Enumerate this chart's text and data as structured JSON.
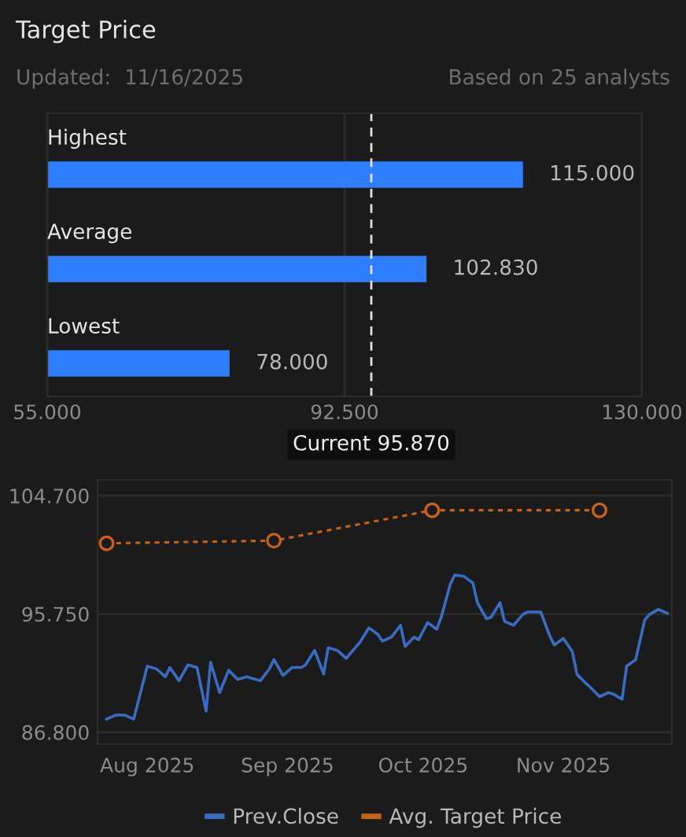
{
  "chart_data": [
    {
      "type": "bar",
      "orientation": "horizontal",
      "title": "Target Price",
      "subtitle": "Updated:  11/16/2025",
      "annotations": [
        "Based on 25 analysts"
      ],
      "categories": [
        "Highest",
        "Average",
        "Lowest"
      ],
      "values": [
        115,
        102.83,
        78
      ],
      "color": "#2f7dff",
      "value_labels": [
        "115.000",
        "102.830",
        "78.000"
      ],
      "xlim": [
        55,
        130
      ],
      "xticks": [
        {
          "value": 55,
          "label": "55.000"
        },
        {
          "value": 92.5,
          "label": "92.500"
        },
        {
          "value": 130,
          "label": "130.000"
        }
      ],
      "ref_lines": [
        {
          "axis": "x",
          "value": 95.87,
          "label": "Current 95.870",
          "color": "#e0e0e0",
          "line_style": "dashed"
        }
      ],
      "grid": "x"
    },
    {
      "type": "line",
      "x": [
        "2025-07-23",
        "2025-07-25",
        "2025-07-27",
        "2025-07-29",
        "2025-08-01",
        "2025-08-03",
        "2025-08-05",
        "2025-08-06",
        "2025-08-08",
        "2025-08-10",
        "2025-08-12",
        "2025-08-14",
        "2025-08-15",
        "2025-08-17",
        "2025-08-19",
        "2025-08-21",
        "2025-08-23",
        "2025-08-24",
        "2025-08-26",
        "2025-08-28",
        "2025-08-29",
        "2025-08-31",
        "2025-09-02",
        "2025-09-04",
        "2025-09-05",
        "2025-09-07",
        "2025-09-09",
        "2025-09-10",
        "2025-09-12",
        "2025-09-14",
        "2025-09-16",
        "2025-09-17",
        "2025-09-19",
        "2025-09-21",
        "2025-09-22",
        "2025-09-24",
        "2025-09-26",
        "2025-09-27",
        "2025-09-29",
        "2025-09-30",
        "2025-10-02",
        "2025-10-04",
        "2025-10-05",
        "2025-10-07",
        "2025-10-08",
        "2025-10-10",
        "2025-10-12",
        "2025-10-13",
        "2025-10-15",
        "2025-10-16",
        "2025-10-18",
        "2025-10-19",
        "2025-10-21",
        "2025-10-23",
        "2025-10-24",
        "2025-10-26",
        "2025-10-27",
        "2025-10-29",
        "2025-10-30",
        "2025-11-01",
        "2025-11-03",
        "2025-11-04",
        "2025-11-06",
        "2025-11-07",
        "2025-11-09",
        "2025-11-11",
        "2025-11-12",
        "2025-11-14",
        "2025-11-15",
        "2025-11-17",
        "2025-11-19",
        "2025-11-20",
        "2025-11-22",
        "2025-11-24"
      ],
      "series": [
        {
          "name": "Prev.Close",
          "color": "#3a6cc4",
          "values": [
            87.8,
            88.1,
            88.1,
            87.8,
            91.8,
            91.6,
            91.0,
            91.7,
            90.7,
            91.9,
            91.7,
            88.4,
            92.1,
            89.8,
            91.5,
            90.8,
            91.0,
            90.9,
            90.7,
            91.6,
            92.3,
            91.1,
            91.7,
            91.7,
            91.9,
            93.0,
            91.2,
            93.2,
            93.0,
            92.4,
            93.2,
            93.6,
            94.7,
            94.2,
            93.7,
            94.0,
            94.9,
            93.3,
            94.0,
            93.8,
            95.1,
            94.6,
            95.5,
            98.0,
            98.7,
            98.6,
            98.1,
            96.6,
            95.4,
            95.5,
            96.6,
            95.2,
            94.9,
            95.7,
            95.9,
            95.9,
            95.9,
            94.1,
            93.4,
            93.9,
            92.9,
            91.2,
            90.5,
            90.2,
            89.5,
            89.8,
            89.7,
            89.3,
            91.8,
            92.3,
            95.3,
            95.7,
            96.1,
            95.8
          ]
        },
        {
          "name": "Avg. Target Price",
          "color": "#c8621a",
          "x": [
            "2025-07-23",
            "2025-08-29",
            "2025-10-03",
            "2025-11-09"
          ],
          "values": [
            101.1,
            101.3,
            103.6,
            103.6
          ],
          "marker": "circle",
          "line_style": "dotted"
        }
      ],
      "xlim": [
        "2025-07-21",
        "2025-11-25"
      ],
      "xticks": [
        {
          "value": "2025-08-01",
          "label": "Aug 2025"
        },
        {
          "value": "2025-09-01",
          "label": "Sep 2025"
        },
        {
          "value": "2025-10-01",
          "label": "Oct 2025"
        },
        {
          "value": "2025-11-01",
          "label": "Nov 2025"
        }
      ],
      "ylim": [
        85.9,
        105.9
      ],
      "yticks": [
        {
          "value": 86.8,
          "label": "86.800"
        },
        {
          "value": 95.75,
          "label": "95.750"
        },
        {
          "value": 104.7,
          "label": "104.700"
        }
      ],
      "grid": "y",
      "legend": "bottom"
    }
  ]
}
